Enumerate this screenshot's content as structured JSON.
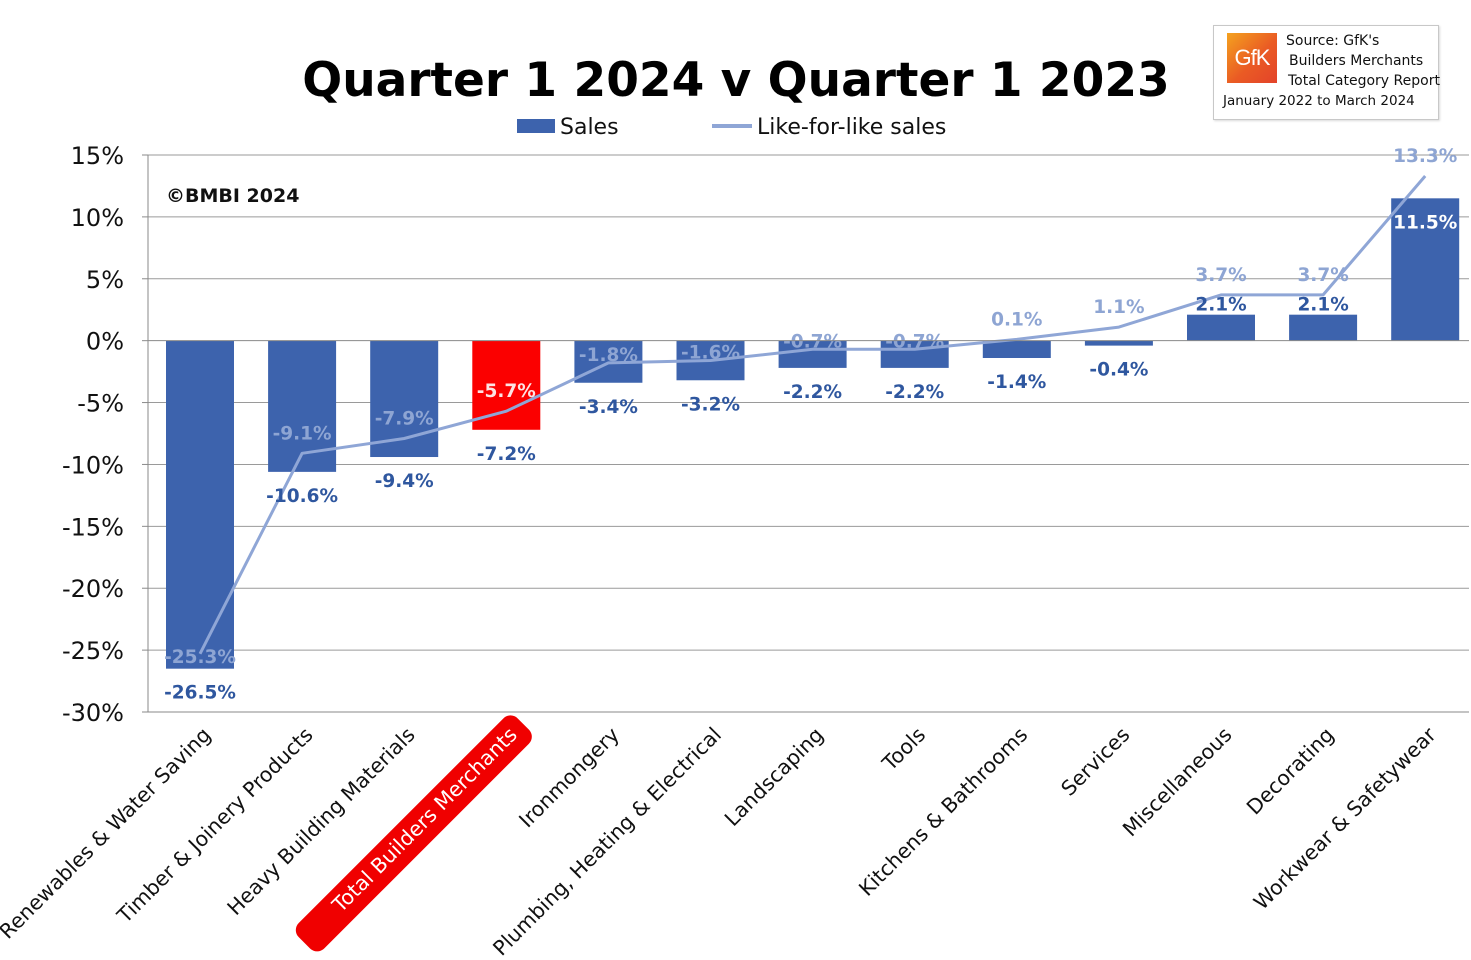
{
  "chart_data": {
    "type": "bar",
    "title": "Quarter 1 2024 v Quarter 1 2023",
    "watermark": "©BMBI 2024",
    "ylim": [
      -30,
      15
    ],
    "ytick_step": 5,
    "ytick_labels": [
      "15%",
      "10%",
      "5%",
      "0%",
      "-5%",
      "-10%",
      "-15%",
      "-20%",
      "-25%",
      "-30%"
    ],
    "yticks": [
      15,
      10,
      5,
      0,
      -5,
      -10,
      -15,
      -20,
      -25,
      -30
    ],
    "grid": true,
    "legend": {
      "position": "top-center",
      "entries": [
        {
          "name": "Sales",
          "kind": "bar"
        },
        {
          "name": "Like-for-like sales",
          "kind": "line"
        }
      ]
    },
    "categories": [
      "Renewables & Water Saving",
      "Timber & Joinery Products",
      "Heavy Building Materials",
      "Total Builders Merchants",
      "Ironmongery",
      "Plumbing, Heating & Electrical",
      "Landscaping",
      "Tools",
      "Kitchens & Bathrooms",
      "Services",
      "Miscellaneous",
      "Decorating",
      "Workwear & Safetywear"
    ],
    "highlight_category": "Total Builders Merchants",
    "series": [
      {
        "name": "Sales",
        "type": "bar",
        "values": [
          -26.5,
          -10.6,
          -9.4,
          -7.2,
          -3.4,
          -3.2,
          -2.2,
          -2.2,
          -1.4,
          -0.4,
          2.1,
          2.1,
          11.5
        ],
        "labels": [
          "-26.5%",
          "-10.6%",
          "-9.4%",
          "-7.2%",
          "-3.4%",
          "-3.2%",
          "-2.2%",
          "-2.2%",
          "-1.4%",
          "-0.4%",
          "2.1%",
          "2.1%",
          "11.5%"
        ]
      },
      {
        "name": "Like-for-like sales",
        "type": "line",
        "values": [
          -25.3,
          -9.1,
          -7.9,
          -5.7,
          -1.8,
          -1.6,
          -0.7,
          -0.7,
          0.1,
          1.1,
          3.7,
          3.7,
          13.3
        ],
        "labels": [
          "-25.3%",
          "-9.1%",
          "-7.9%",
          "-5.7%",
          "-1.8%",
          "-1.6%",
          "-0.7%",
          "-0.7%",
          "0.1%",
          "1.1%",
          "3.7%",
          "3.7%",
          "13.3%"
        ]
      }
    ],
    "colors": {
      "bar": "#3d63ad",
      "bar_highlight": "#fb0000",
      "line": "#8fa6d6",
      "bar_label": "#2f579f",
      "line_label": "#8ea5d3",
      "grid": "#9a9a9a",
      "highlight_pill": "#f00000"
    }
  },
  "source_box": {
    "logo_text": "GfK",
    "lines": [
      "Source: GfK's",
      "Builders Merchants",
      "Total Category Report"
    ],
    "range": "January 2022 to March 2024"
  }
}
